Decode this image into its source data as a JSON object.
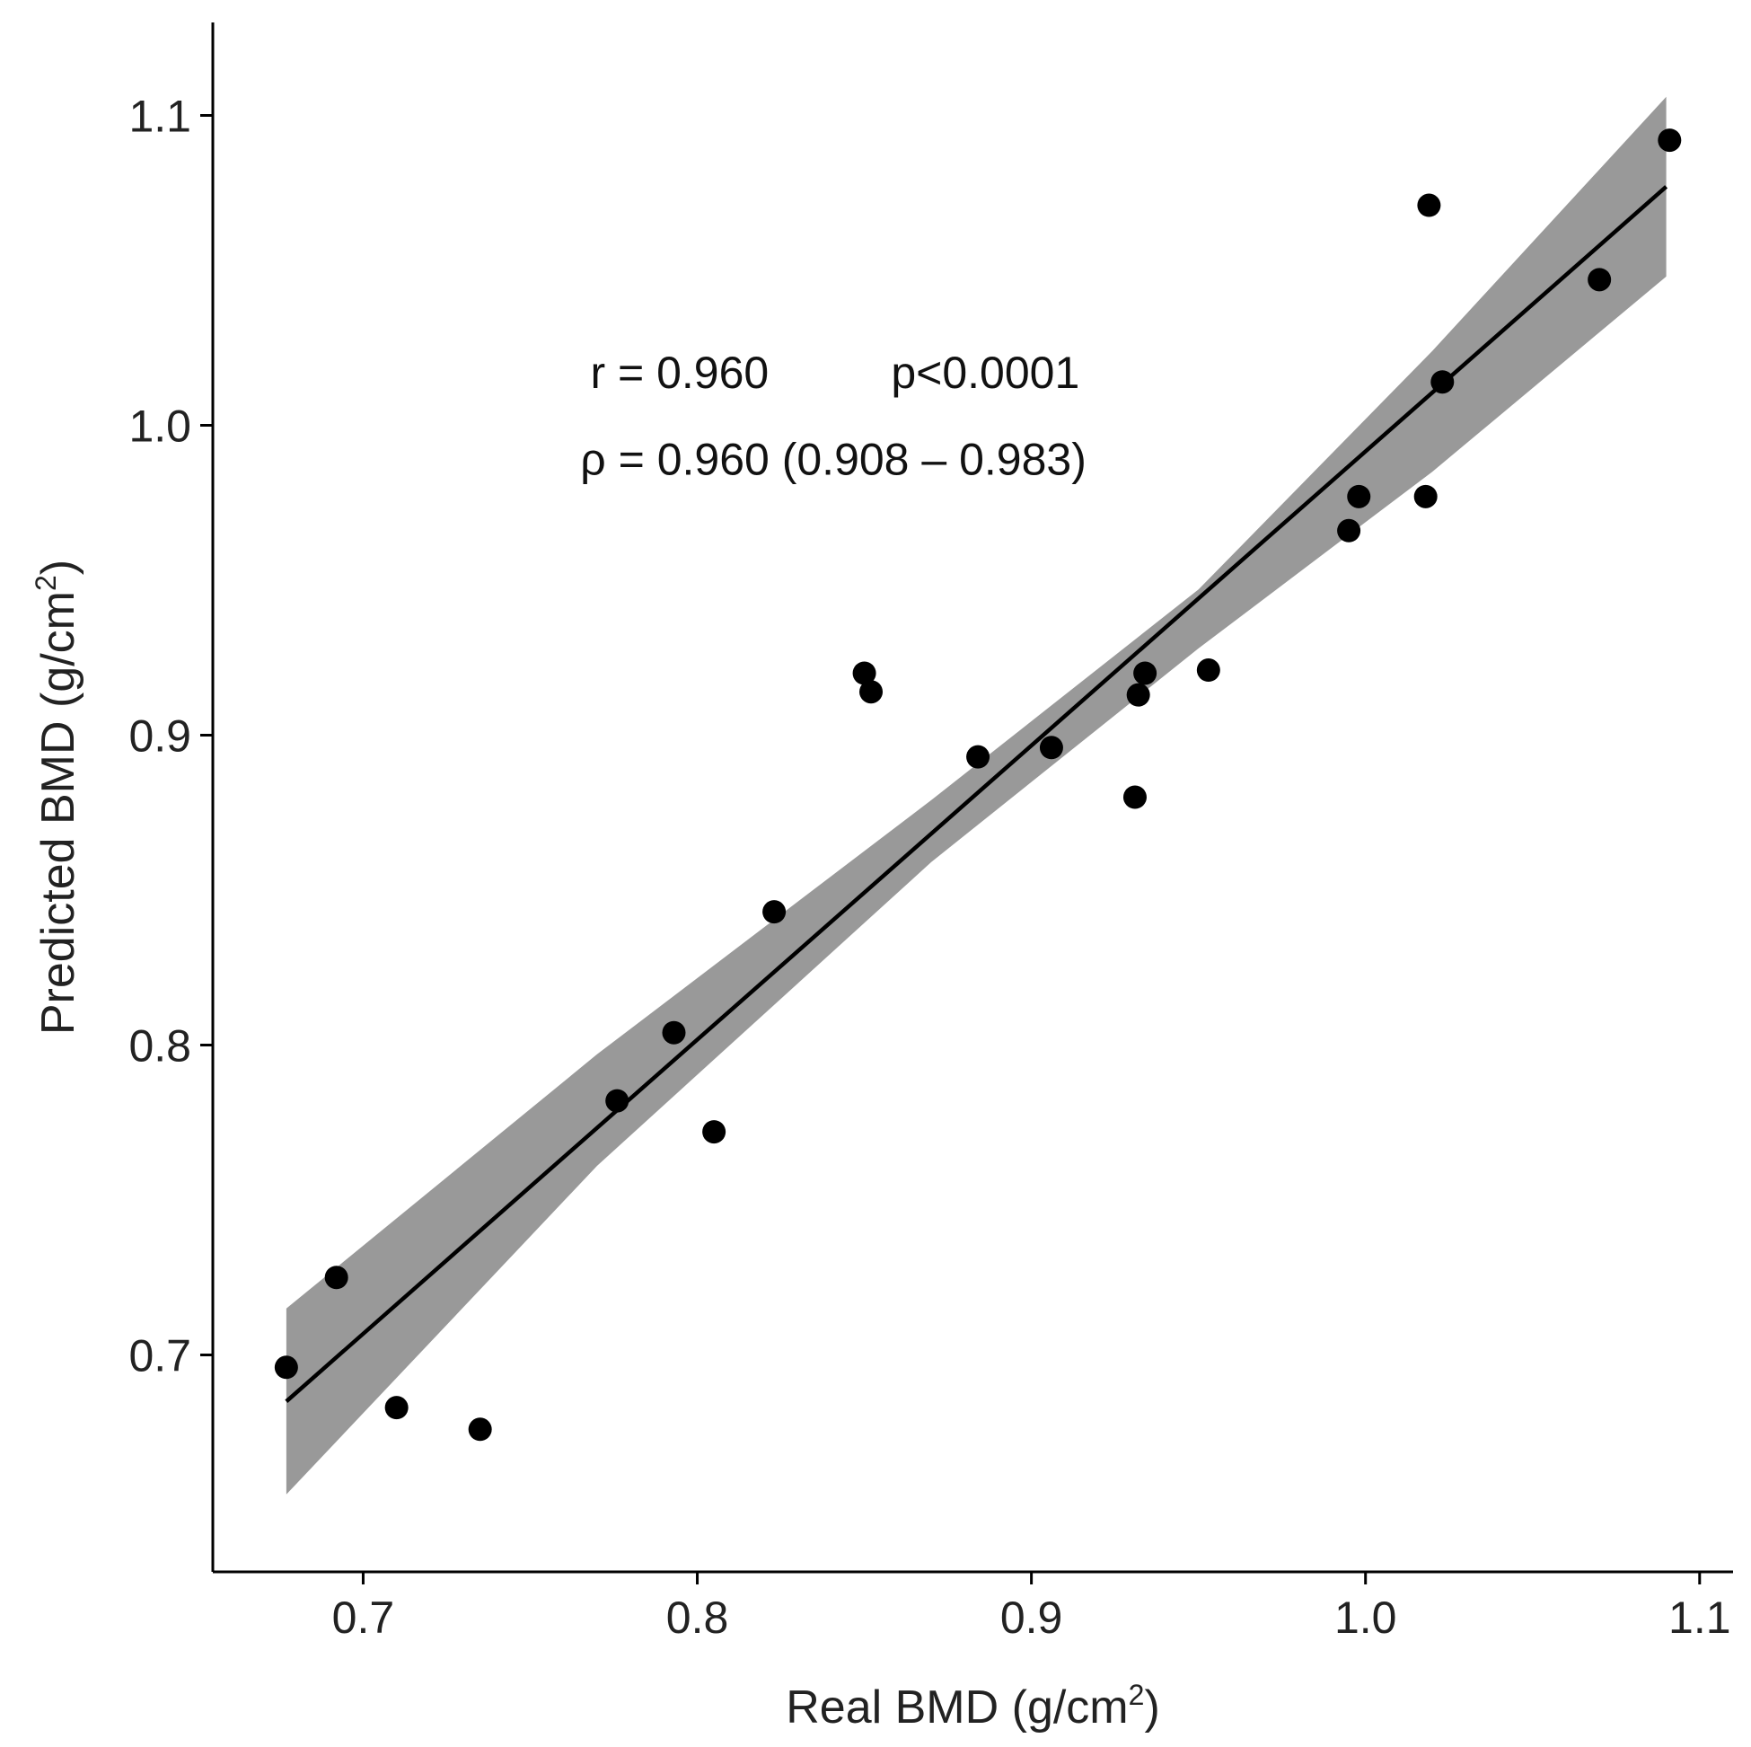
{
  "chart_data": {
    "type": "scatter",
    "title": "",
    "xlabel": {
      "main": "Real BMD (g/cm",
      "sup": "2",
      "close": ")"
    },
    "ylabel": {
      "main": "Predicted BMD (g/cm",
      "sup": "2",
      "close": ")"
    },
    "xlim": [
      0.655,
      1.11
    ],
    "ylim": [
      0.63,
      1.13
    ],
    "x_ticks": [
      0.7,
      0.8,
      0.9,
      1.0,
      1.1
    ],
    "x_tick_labels": [
      "0.7",
      "0.8",
      "0.9",
      "1.0",
      "1.1"
    ],
    "y_ticks": [
      0.7,
      0.8,
      0.9,
      1.0,
      1.1
    ],
    "y_tick_labels": [
      "0.7",
      "0.8",
      "0.9",
      "1.0",
      "1.1"
    ],
    "grid": false,
    "points": [
      {
        "x": 0.677,
        "y": 0.696
      },
      {
        "x": 0.692,
        "y": 0.725
      },
      {
        "x": 0.71,
        "y": 0.683
      },
      {
        "x": 0.735,
        "y": 0.676
      },
      {
        "x": 0.776,
        "y": 0.782
      },
      {
        "x": 0.793,
        "y": 0.804
      },
      {
        "x": 0.805,
        "y": 0.772
      },
      {
        "x": 0.823,
        "y": 0.843
      },
      {
        "x": 0.85,
        "y": 0.92
      },
      {
        "x": 0.852,
        "y": 0.914
      },
      {
        "x": 0.884,
        "y": 0.893
      },
      {
        "x": 0.906,
        "y": 0.896
      },
      {
        "x": 0.931,
        "y": 0.88
      },
      {
        "x": 0.932,
        "y": 0.913
      },
      {
        "x": 0.934,
        "y": 0.92
      },
      {
        "x": 0.953,
        "y": 0.921
      },
      {
        "x": 0.995,
        "y": 0.966
      },
      {
        "x": 0.998,
        "y": 0.977
      },
      {
        "x": 1.018,
        "y": 0.977
      },
      {
        "x": 1.019,
        "y": 1.071
      },
      {
        "x": 1.023,
        "y": 1.014
      },
      {
        "x": 1.07,
        "y": 1.047
      },
      {
        "x": 1.091,
        "y": 1.092
      }
    ],
    "fit_line": {
      "x": [
        0.677,
        1.09
      ],
      "y": [
        0.685,
        1.077
      ]
    },
    "confidence_band": {
      "x": [
        0.677,
        0.77,
        0.87,
        0.95,
        1.02,
        1.09
      ],
      "lower": [
        0.655,
        0.761,
        0.859,
        0.928,
        0.985,
        1.048
      ],
      "upper": [
        0.715,
        0.797,
        0.879,
        0.947,
        1.024,
        1.106
      ]
    },
    "annotations": [
      {
        "id": "r",
        "text": "r = 0.960",
        "x": 0.768,
        "y": 1.012
      },
      {
        "id": "p",
        "text": "p<0.0001",
        "x": 0.858,
        "y": 1.012
      },
      {
        "id": "rho",
        "text": "ρ = 0.960 (0.908 – 0.983)",
        "x": 0.765,
        "y": 0.984
      }
    ],
    "colors": {
      "point": "#000000",
      "line": "#000000",
      "band": "#999999",
      "axis": "#000000"
    }
  }
}
